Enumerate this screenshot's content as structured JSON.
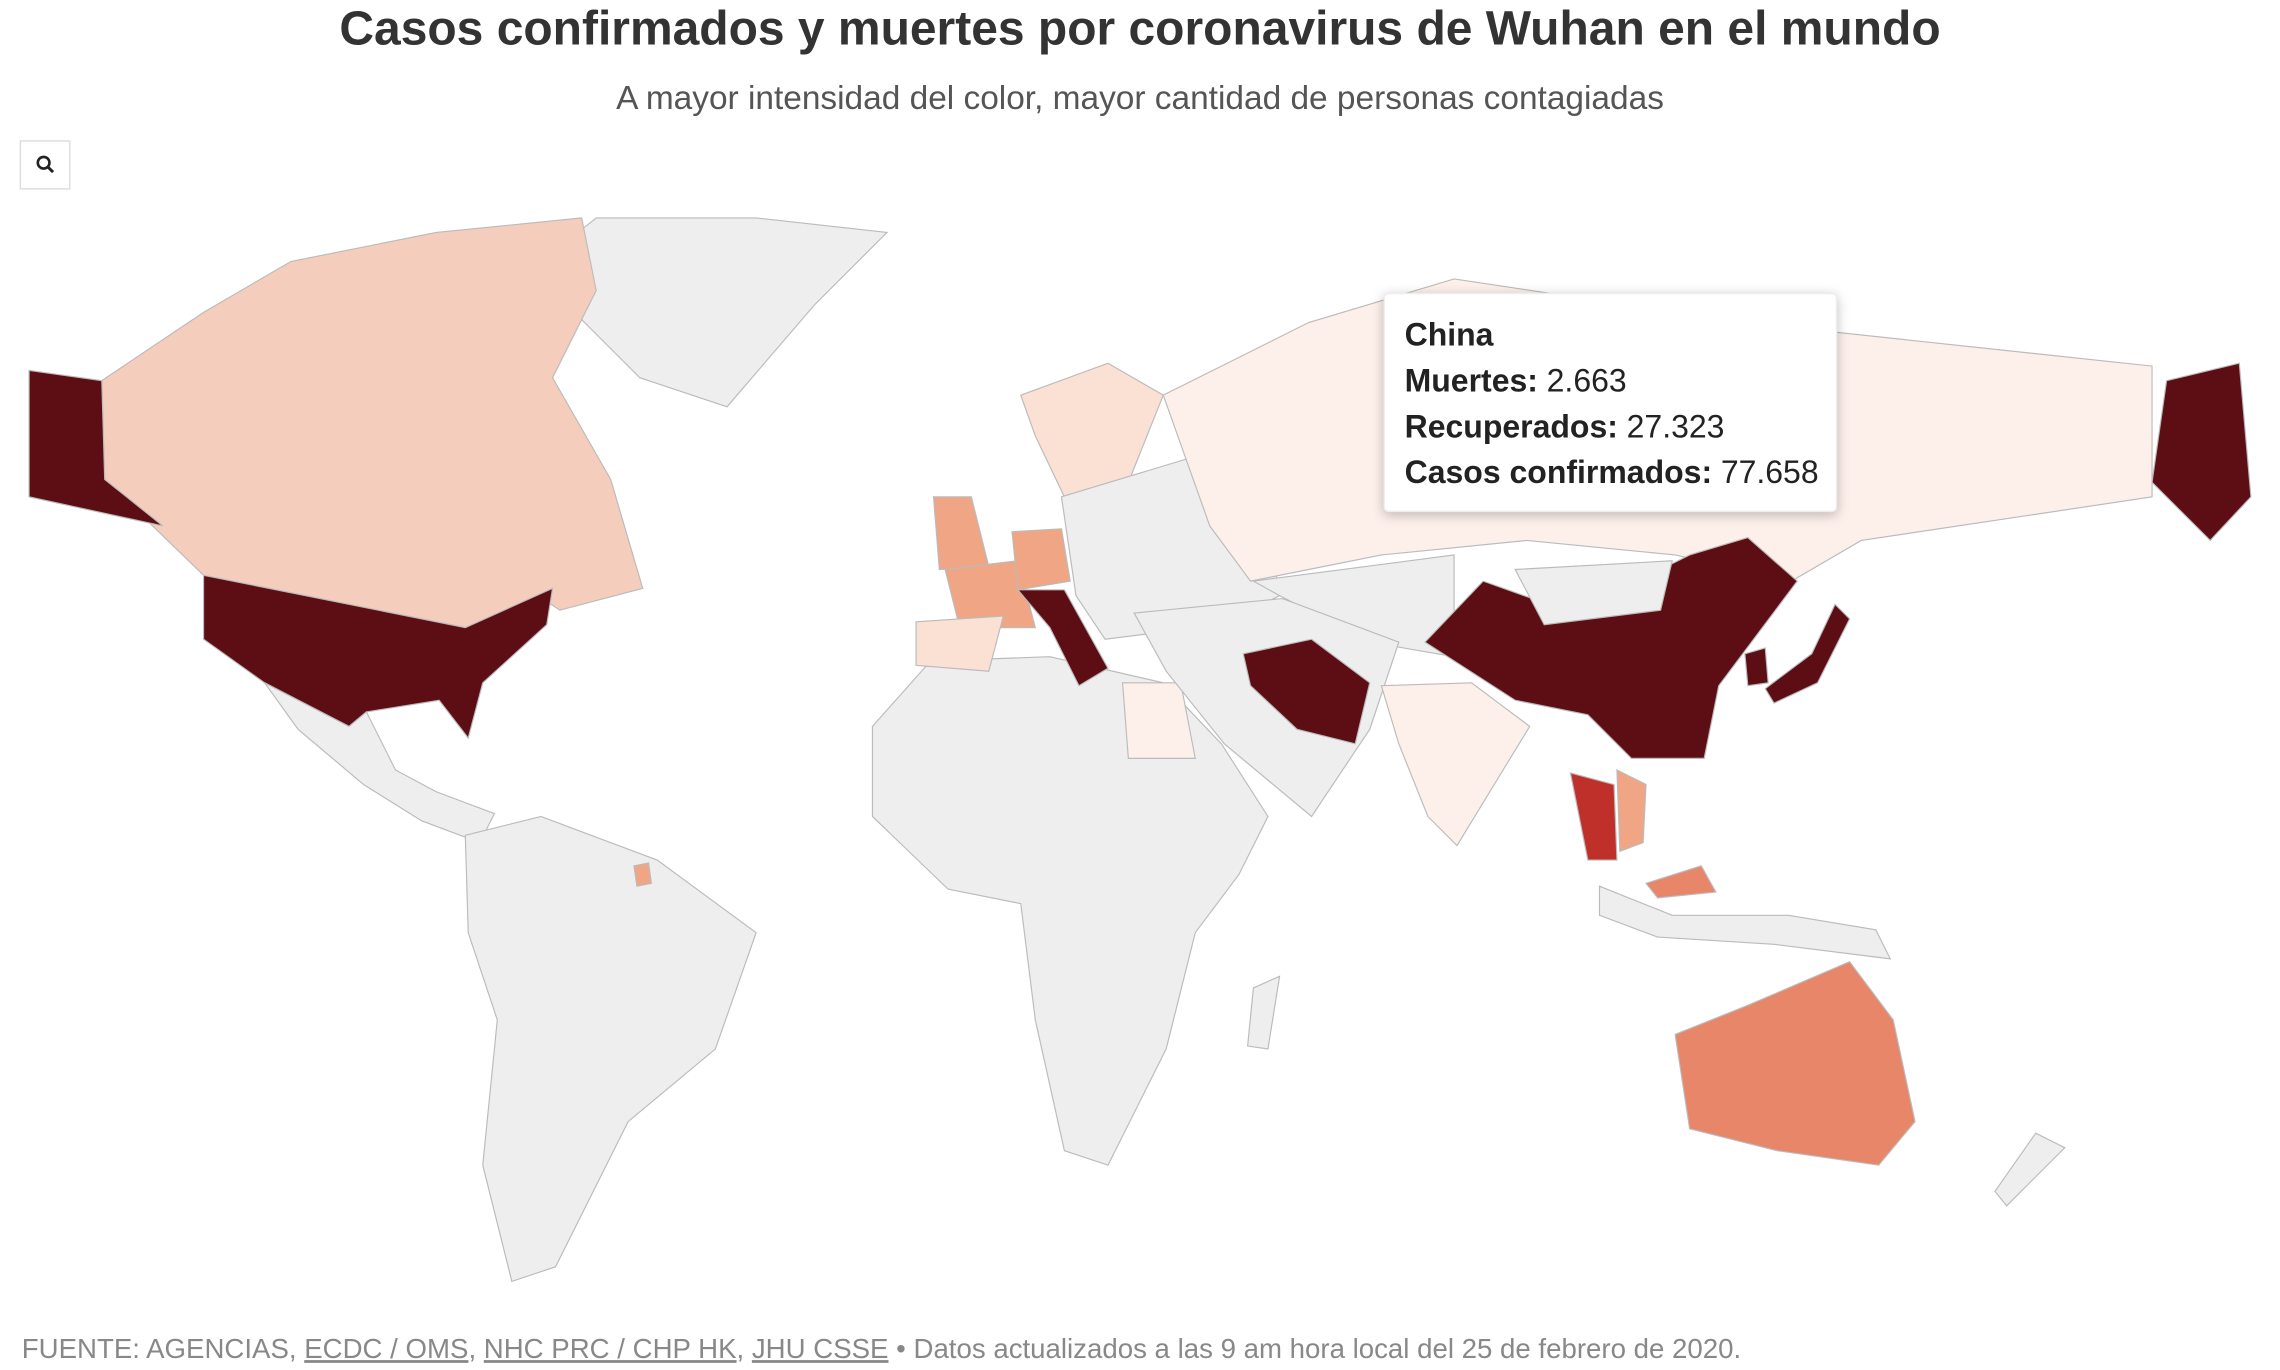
{
  "title": "Casos confirmados y muertes por coronavirus de Wuhan en el mundo",
  "subtitle": "A mayor intensidad del color, mayor cantidad de personas contagiadas",
  "tooltip": {
    "name": "China",
    "rows": [
      {
        "label": "Muertes:",
        "value": "2.663"
      },
      {
        "label": "Recuperados:",
        "value": "27.323"
      },
      {
        "label": "Casos confirmados:",
        "value": "77.658"
      }
    ]
  },
  "footer": {
    "parts": [
      {
        "text": "FUENTE: AGENCIAS, ",
        "link": false
      },
      {
        "text": "ECDC / OMS",
        "link": true
      },
      {
        "text": ", ",
        "link": false
      },
      {
        "text": "NHC PRC / CHP HK",
        "link": true
      },
      {
        "text": ", ",
        "link": false
      },
      {
        "text": "JHU CSSE",
        "link": true
      },
      {
        "text": " • Datos actualizados a las 9 am hora local del 25 de febrero de 2020.",
        "link": false
      }
    ]
  }
}
